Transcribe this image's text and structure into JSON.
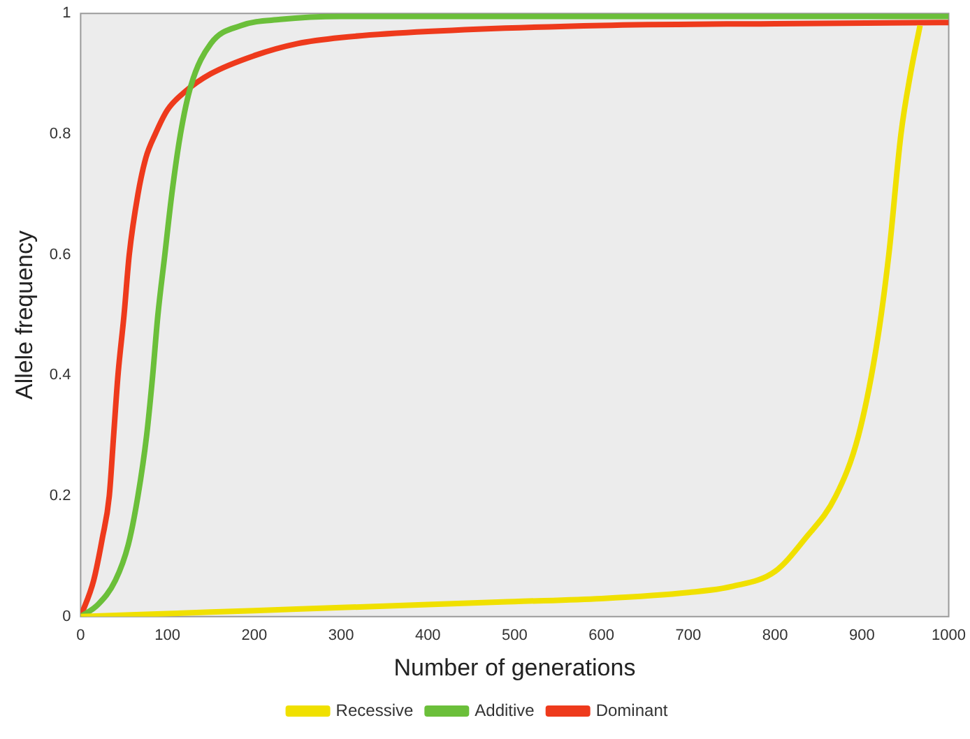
{
  "chart_data": {
    "type": "line",
    "xlabel": "Number of generations",
    "ylabel": "Allele frequency",
    "xlim": [
      0,
      1000
    ],
    "xticks": [
      0,
      100,
      200,
      300,
      400,
      500,
      600,
      700,
      800,
      900,
      1000
    ],
    "ylim": [
      0,
      1
    ],
    "yticks": [
      0,
      0.2,
      0.4,
      0.6,
      0.8,
      1
    ],
    "grid": false,
    "legend": "bottom",
    "marker": "none",
    "line_style": "solid",
    "series": [
      {
        "name": "Recessive",
        "color": "#f0e000",
        "x": [
          0,
          100,
          200,
          300,
          400,
          500,
          600,
          700,
          750,
          800,
          835,
          870,
          896,
          917,
          931,
          945,
          956,
          967
        ],
        "values": [
          0,
          0.005,
          0.01,
          0.015,
          0.02,
          0.025,
          0.03,
          0.04,
          0.05,
          0.075,
          0.13,
          0.2,
          0.3,
          0.45,
          0.6,
          0.8,
          0.9,
          0.98
        ]
      },
      {
        "name": "Additive",
        "color": "#6bbf3a",
        "x": [
          0,
          20,
          40,
          55,
          66,
          76,
          83,
          89,
          97,
          105,
          115,
          127,
          150,
          185,
          230,
          300,
          500,
          1000
        ],
        "values": [
          0,
          0.02,
          0.06,
          0.12,
          0.2,
          0.3,
          0.4,
          0.5,
          0.6,
          0.7,
          0.8,
          0.88,
          0.95,
          0.98,
          0.99,
          0.995,
          0.995,
          0.995
        ]
      },
      {
        "name": "Dominant",
        "color": "#ee3a1c",
        "x": [
          0,
          15,
          25,
          33,
          38,
          43,
          50,
          56,
          66,
          75,
          86,
          100,
          120,
          150,
          200,
          250,
          300,
          400,
          600,
          800,
          1000
        ],
        "values": [
          0,
          0.06,
          0.13,
          0.2,
          0.3,
          0.4,
          0.5,
          0.6,
          0.7,
          0.76,
          0.8,
          0.84,
          0.87,
          0.9,
          0.93,
          0.95,
          0.96,
          0.97,
          0.98,
          0.983,
          0.985
        ]
      }
    ]
  }
}
